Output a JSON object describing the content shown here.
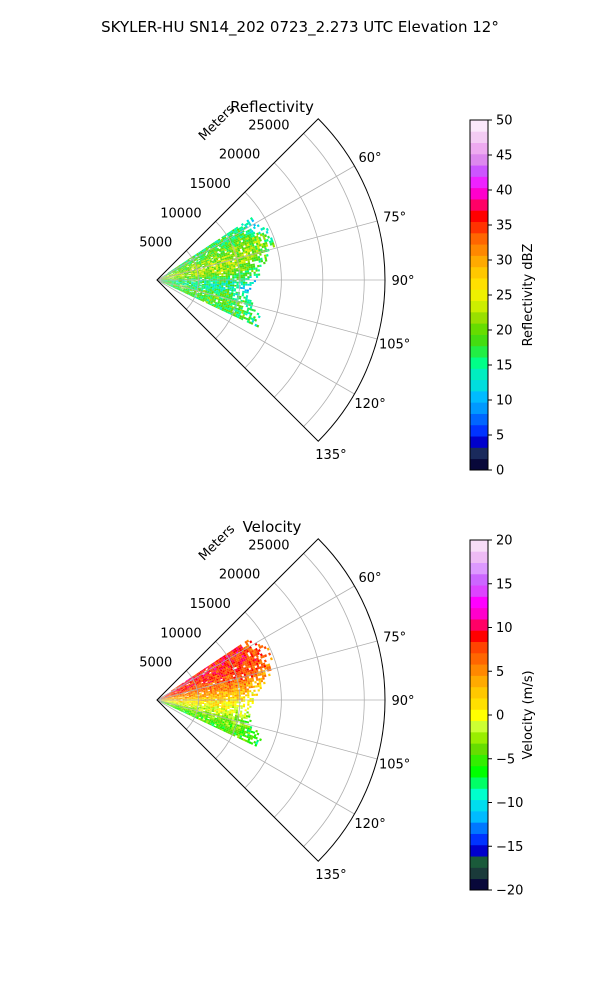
{
  "figure": {
    "suptitle": "SKYLER-HU  SN14_202  0723_2.273 UTC Elevation 12°"
  },
  "chart_data": [
    {
      "type": "heatmap",
      "subtype": "polar-sector-ppi",
      "title": "Reflectivity",
      "range_label": "Meters",
      "range_ticks": [
        5000,
        10000,
        15000,
        20000,
        25000
      ],
      "range_tick_labels": [
        "5000",
        "10000",
        "15000",
        "20000",
        "25000"
      ],
      "rmax": 27500,
      "azimuth_range_deg": [
        45,
        135
      ],
      "azimuth_ticks": [
        "60°",
        "75°",
        "90°",
        "105°",
        "120°",
        "135°"
      ],
      "grid": true,
      "colorbar": {
        "label": "Reflectivity dBZ",
        "min": 0,
        "max": 50,
        "ticks": [
          "0",
          "5",
          "10",
          "15",
          "20",
          "25",
          "30",
          "35",
          "40",
          "45",
          "50"
        ],
        "colors": [
          "#08083a",
          "#1a2a5c",
          "#0000cc",
          "#0033ff",
          "#0066ff",
          "#0099ff",
          "#00bbff",
          "#00dddd",
          "#00eec0",
          "#00ff88",
          "#22ee44",
          "#44dd11",
          "#66dd00",
          "#99e000",
          "#ccee00",
          "#eef000",
          "#ffe000",
          "#ffc800",
          "#ffaa00",
          "#ff8800",
          "#ff6600",
          "#ff3300",
          "#ff0000",
          "#ff0066",
          "#ff00cc",
          "#ee22ff",
          "#cc55ff",
          "#dd88ee",
          "#eeaaf0",
          "#f4ccf4",
          "#fbe8fb"
        ]
      },
      "echo_summary": [
        {
          "azimuth": 60,
          "range_start": 1500,
          "range_end": 13500,
          "typical_dbz": 17
        },
        {
          "azimuth": 67,
          "range_start": 500,
          "range_end": 15000,
          "typical_dbz": 20
        },
        {
          "azimuth": 75,
          "range_start": 500,
          "range_end": 14500,
          "typical_dbz": 22
        },
        {
          "azimuth": 83,
          "range_start": 500,
          "range_end": 12500,
          "typical_dbz": 21
        },
        {
          "azimuth": 90,
          "range_start": 500,
          "range_end": 12000,
          "typical_dbz": 17
        },
        {
          "azimuth": 97,
          "range_start": 500,
          "range_end": 11000,
          "typical_dbz": 15
        },
        {
          "azimuth": 105,
          "range_start": 500,
          "range_end": 12000,
          "typical_dbz": 19
        },
        {
          "azimuth": 112,
          "range_start": 500,
          "range_end": 13500,
          "typical_dbz": 18
        }
      ]
    },
    {
      "type": "heatmap",
      "subtype": "polar-sector-ppi",
      "title": "Velocity",
      "range_label": "Meters",
      "range_ticks": [
        5000,
        10000,
        15000,
        20000,
        25000
      ],
      "range_tick_labels": [
        "5000",
        "10000",
        "15000",
        "20000",
        "25000"
      ],
      "rmax": 27500,
      "azimuth_range_deg": [
        45,
        135
      ],
      "azimuth_ticks": [
        "60°",
        "75°",
        "90°",
        "105°",
        "120°",
        "135°"
      ],
      "grid": true,
      "colorbar": {
        "label": "Velocity (m/s)",
        "min": -20,
        "max": 20,
        "ticks": [
          "−20",
          "−15",
          "−10",
          "−5",
          "0",
          "5",
          "10",
          "15",
          "20"
        ],
        "colors": [
          "#08083a",
          "#1a3a3a",
          "#1a5a3a",
          "#0000cc",
          "#0033ff",
          "#0077ff",
          "#00bbff",
          "#00ddee",
          "#00ffcc",
          "#00ff66",
          "#00ff00",
          "#33ee00",
          "#66dd00",
          "#99ee00",
          "#ccff33",
          "#ffff00",
          "#ffe000",
          "#ffc800",
          "#ffaa00",
          "#ff8800",
          "#ff6600",
          "#ff4400",
          "#ff0000",
          "#ff0066",
          "#ff00cc",
          "#ff00ff",
          "#dd44ff",
          "#cc66ff",
          "#dd99ff",
          "#eebbf5",
          "#f8ddf8"
        ]
      },
      "echo_summary": [
        {
          "azimuth": 60,
          "range_start": 2000,
          "range_end": 13500,
          "typical_velocity": 9
        },
        {
          "azimuth": 67,
          "range_start": 500,
          "range_end": 15000,
          "typical_velocity": 8
        },
        {
          "azimuth": 75,
          "range_start": 500,
          "range_end": 14500,
          "typical_velocity": 7
        },
        {
          "azimuth": 83,
          "range_start": 500,
          "range_end": 12500,
          "typical_velocity": 4
        },
        {
          "azimuth": 90,
          "range_start": 500,
          "range_end": 12000,
          "typical_velocity": 2
        },
        {
          "azimuth": 97,
          "range_start": 500,
          "range_end": 11000,
          "typical_velocity": 0
        },
        {
          "azimuth": 105,
          "range_start": 500,
          "range_end": 12000,
          "typical_velocity": -3
        },
        {
          "azimuth": 112,
          "range_start": 500,
          "range_end": 13500,
          "typical_velocity": -5
        }
      ]
    }
  ]
}
